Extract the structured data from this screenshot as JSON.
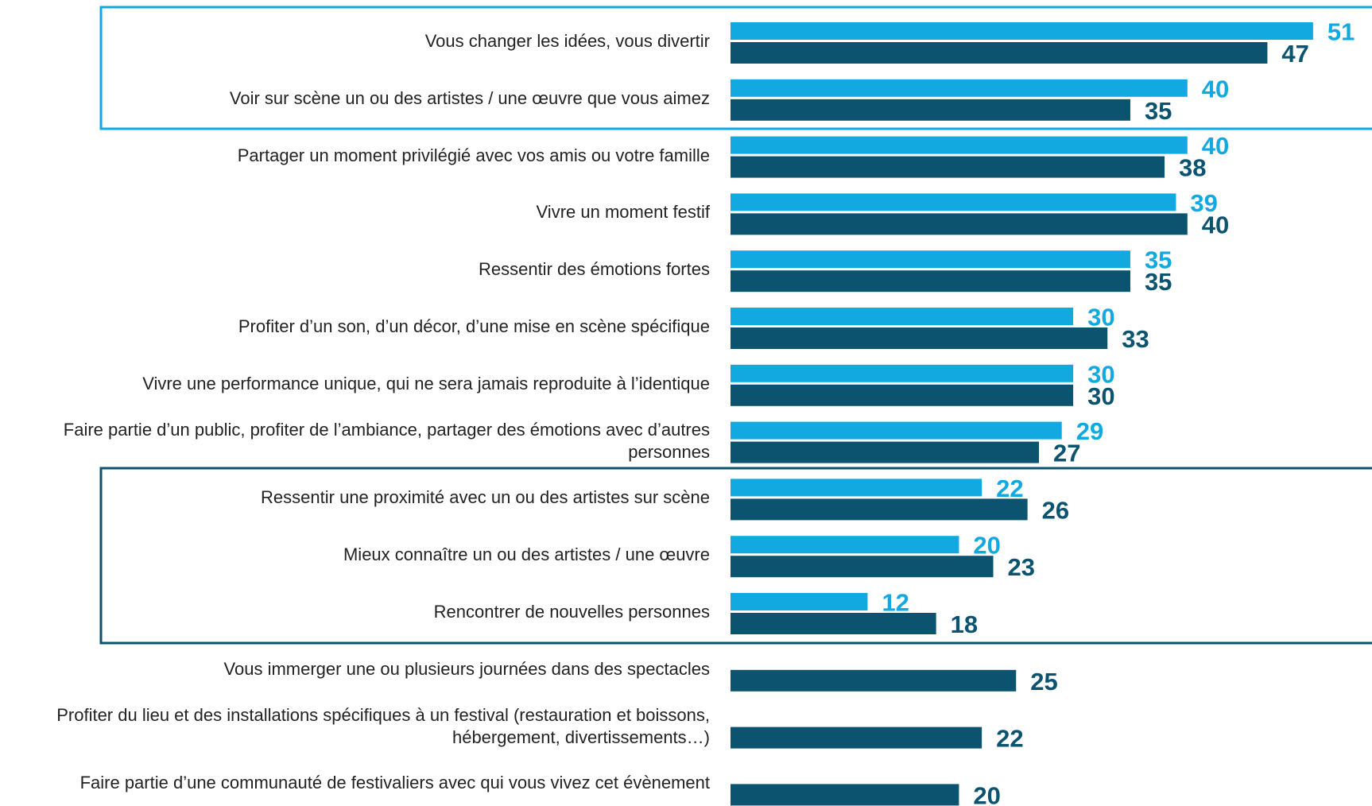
{
  "chart_data": {
    "type": "bar",
    "orientation": "horizontal",
    "categories": [
      "Vous changer les idées, vous divertir",
      "Voir sur scène un ou des artistes / une œuvre que vous aimez",
      "Partager un moment privilégié avec vos amis ou votre famille",
      "Vivre un moment festif",
      "Ressentir des émotions fortes",
      "Profiter d’un son, d’un décor, d’une mise en scène spécifique",
      "Vivre une performance unique, qui ne sera jamais reproduite à l’identique",
      "Faire partie d’un public, profiter de l’ambiance, partager des émotions avec d’autres personnes",
      "Ressentir une proximité avec un ou des artistes sur scène",
      "Mieux connaître un ou des artistes / une œuvre",
      "Rencontrer de nouvelles personnes",
      "Vous immerger une ou plusieurs journées dans des spectacles",
      "Profiter du lieu et des installations spécifiques à un festival (restauration et boissons, hébergement, divertissements…)",
      "Faire partie d’une communauté de festivaliers avec qui vous vivez cet évènement"
    ],
    "series": [
      {
        "color": "#12a9e0",
        "values": [
          51,
          40,
          40,
          39,
          35,
          30,
          30,
          29,
          22,
          20,
          12,
          null,
          null,
          null
        ]
      },
      {
        "color": "#0b536e",
        "values": [
          47,
          35,
          38,
          40,
          35,
          33,
          30,
          27,
          26,
          23,
          18,
          25,
          22,
          20
        ]
      }
    ]
  }
}
